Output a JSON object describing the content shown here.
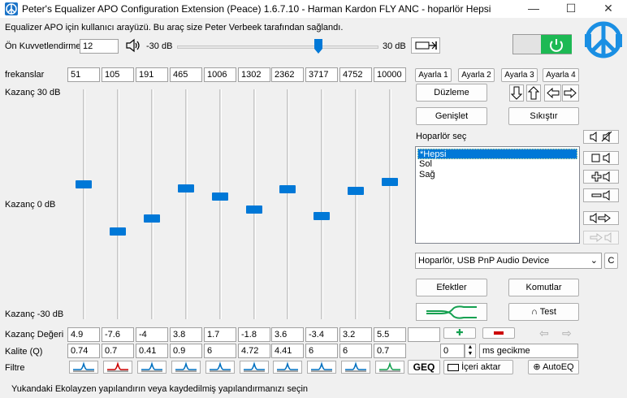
{
  "window": {
    "title": "Peter's Equalizer APO Configuration Extension (Peace) 1.6.7.10 - Harman Kardon FLY ANC - hoparlör Hepsi",
    "minimize": "—",
    "maximize": "☐",
    "close": "✕"
  },
  "header": {
    "intro_text": "Equalizer APO için kullanıcı arayüzü. Bu araç size Peter Verbeek tarafından sağlandı.",
    "preamp_label": "Ön Kuvvetlendirme",
    "preamp_value": "12",
    "preamp_min": "-30 dB",
    "preamp_max": "30 dB",
    "preamp_level_db": 12
  },
  "eq": {
    "freq_label": "frekanslar",
    "gain_top_label": "Kazanç 30 dB",
    "gain_mid_label": "Kazanç 0 dB",
    "gain_bottom_label": "Kazanç -30 dB",
    "gain_value_label": "Kazanç Değeri",
    "quality_label": "Kalite (Q)",
    "filter_label": "Filtre",
    "frequencies": [
      "51",
      "105",
      "191",
      "465",
      "1006",
      "1302",
      "2362",
      "3717",
      "4752",
      "10000"
    ],
    "gains": [
      "4.9",
      "-7.6",
      "-4",
      "3.8",
      "1.7",
      "-1.8",
      "3.6",
      "-3.4",
      "3.2",
      "5.5"
    ],
    "gain_values": [
      4.9,
      -7.6,
      -4,
      3.8,
      1.7,
      -1.8,
      3.6,
      -3.4,
      3.2,
      5.5
    ],
    "qualities": [
      "0.74",
      "0.7",
      "0.41",
      "0.9",
      "6",
      "4.72",
      "4.41",
      "6",
      "6",
      "0.7"
    ]
  },
  "presets": {
    "setting1": "Ayarla 1",
    "setting2": "Ayarla 2",
    "setting3": "Ayarla 3",
    "setting4": "Ayarla 4"
  },
  "actions": {
    "edit": "Düzleme",
    "expand": "Genişlet",
    "compress": "Sıkıştır",
    "effects": "Efektler",
    "commands": "Komutlar",
    "test": "Test",
    "import": "İçeri aktar",
    "autoeq": "AutoEQ",
    "geq": "GEQ"
  },
  "speakers": {
    "label": "Hoparlör seç",
    "items": [
      "*Hepsi",
      "Sol",
      "Sağ"
    ],
    "device": "Hoparlör, USB PnP Audio Device",
    "device_extra": "C"
  },
  "delay": {
    "value": "0",
    "unit": "ms gecikme"
  },
  "status": {
    "text": "Yukandaki Ekolayzen  yapılandırın veya kaydedilmiş yapılandırmanızı seçin"
  },
  "colors": {
    "accent": "#0078d7",
    "power_green": "#1db954",
    "logo": "#1a8fe3"
  }
}
